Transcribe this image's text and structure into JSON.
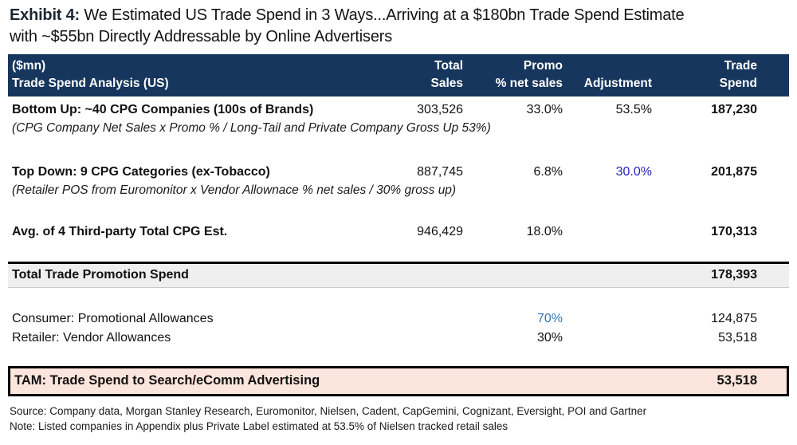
{
  "title": {
    "exhibit_label": "Exhibit 4:",
    "line1": "We Estimated US Trade Spend in 3 Ways...Arriving at a $180bn Trade Spend Estimate",
    "line2": "with ~$55bn Directly Addressable by Online Advertisers"
  },
  "colors": {
    "header_navy": "#17365D",
    "adjustment_blue": "#2525BE",
    "promo_steel_blue": "#2E75B6",
    "total_row_bg": "#EFEFEF",
    "tam_row_bg": "#FBE5DC"
  },
  "table": {
    "header": {
      "col_label_line1": "($mn)",
      "col_label_line2": "Trade Spend Analysis (US)",
      "col_sales_line1": "Total",
      "col_sales_line2": "Sales",
      "col_promo_line1": "Promo",
      "col_promo_line2": "% net sales",
      "col_adj_line1": "",
      "col_adj_line2": "Adjustment",
      "col_spend_line1": "Trade",
      "col_spend_line2": "Spend"
    },
    "rows": [
      {
        "type": "data",
        "label": "Bottom Up: ~40 CPG Companies (100s of Brands)",
        "sales": "303,526",
        "promo": "33.0%",
        "adjustment": "53.5%",
        "spend": "187,230"
      },
      {
        "type": "formula",
        "label": "(CPG Company Net Sales x Promo % / Long-Tail and Private Company Gross Up 53%)"
      },
      {
        "type": "data",
        "label": "Top Down: 9 CPG Categories (ex-Tobacco)",
        "sales": "887,745",
        "promo": "6.8%",
        "adjustment": "30.0%",
        "adjustment_color": "blue",
        "spend": "201,875"
      },
      {
        "type": "formula",
        "label": "(Retailer POS from Euromonitor x Vendor Allownace % net sales / 30% gross up)"
      },
      {
        "type": "data",
        "label": "Avg. of 4 Third-party Total CPG Est.",
        "sales": "946,429",
        "promo": "18.0%",
        "adjustment": "",
        "spend": "170,313"
      },
      {
        "type": "total",
        "label": "Total Trade Promotion Spend",
        "spend": "178,393"
      },
      {
        "type": "split",
        "label": "Consumer: Promotional Allowances",
        "promo": "70%",
        "promo_color": "steelblue",
        "spend": "124,875"
      },
      {
        "type": "split",
        "label": "Retailer: Vendor Allowances",
        "promo": "30%",
        "spend": "53,518"
      },
      {
        "type": "tam",
        "label": "TAM: Trade Spend to Search/eComm Advertising",
        "spend": "53,518"
      }
    ]
  },
  "footer": {
    "source": "Source: Company data, Morgan Stanley Research, Euromonitor, Nielsen, Cadent, CapGemini, Cognizant, Eversight, POI and Gartner",
    "note": "Note: Listed companies in Appendix plus Private Label estimated at 53.5% of Nielsen tracked retail sales"
  }
}
